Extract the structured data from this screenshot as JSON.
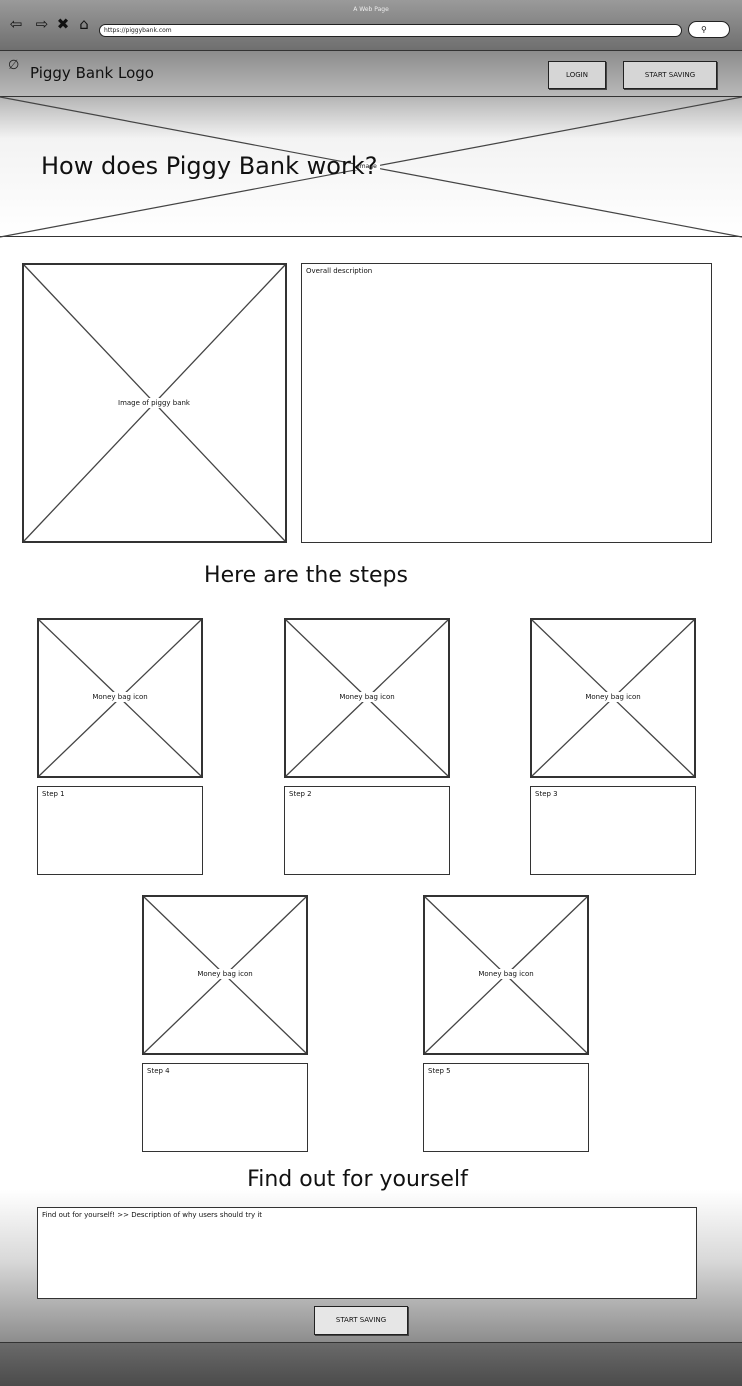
{
  "browser": {
    "window_title": "A Web Page",
    "url": "https://piggybank.com",
    "nav_icons": [
      "back-icon",
      "forward-icon",
      "close-icon",
      "home-icon"
    ]
  },
  "header": {
    "logo_text": "Piggy Bank Logo",
    "login_label": "LOGIN",
    "start_saving_label": "START SAVING"
  },
  "hero": {
    "title": "How does Piggy Bank work?",
    "image_label": "Image"
  },
  "overview": {
    "image_label": "Image of piggy bank",
    "description": "Overall description"
  },
  "steps": {
    "title": "Here are the steps",
    "items": [
      {
        "icon_label": "Money bag icon",
        "text": "Step 1"
      },
      {
        "icon_label": "Money bag icon",
        "text": "Step 2"
      },
      {
        "icon_label": "Money bag icon",
        "text": "Step 3"
      },
      {
        "icon_label": "Money bag icon",
        "text": "Step 4"
      },
      {
        "icon_label": "Money bag icon",
        "text": "Step 5"
      }
    ]
  },
  "cta": {
    "title": "Find out for yourself",
    "description": "Find out for yourself! >> Description of why users should try it",
    "start_saving_label": "START SAVING"
  }
}
